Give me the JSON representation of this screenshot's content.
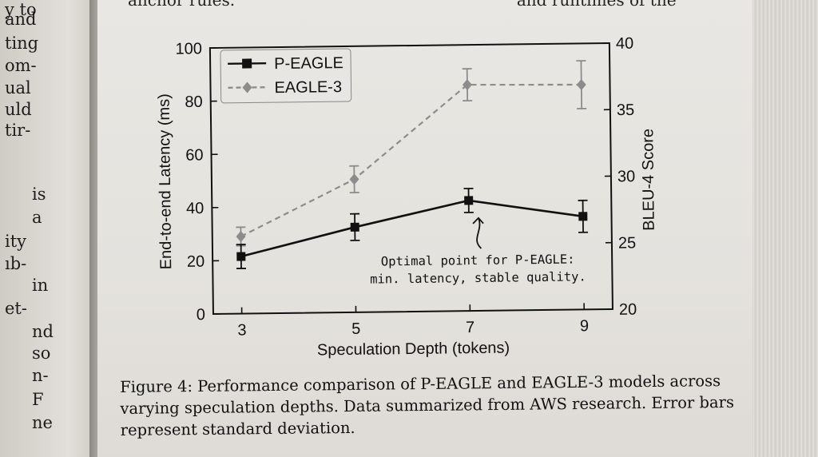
{
  "left_page_fragments": [
    "y to",
    "and",
    "ting",
    "om-",
    "ual",
    "uld",
    "tir-",
    "",
    "is",
    "a",
    "ity",
    "ıb-",
    "in",
    "et-",
    "nd",
    "so",
    "n-",
    "F",
    "ne"
  ],
  "top_fragment_left": "anchor rules.",
  "top_fragment_right": "and runtimes of the",
  "chart_data": {
    "type": "line",
    "x": [
      3,
      5,
      7,
      9
    ],
    "xlabel": "Speculation Depth (tokens)",
    "ylabel": "End-to-end Latency (ms)",
    "ylabel_right": "BLEU-4 Score",
    "ylim": [
      0,
      100
    ],
    "ylim_right": [
      20,
      40
    ],
    "xticks": [
      "3",
      "5",
      "7",
      "9"
    ],
    "yticks": [
      "0",
      "20",
      "40",
      "60",
      "80",
      "100"
    ],
    "yticks_right": [
      "20",
      "25",
      "30",
      "35",
      "40"
    ],
    "series": [
      {
        "name": "P-EAGLE",
        "values": [
          21.5,
          32,
          41.5,
          35
        ],
        "errors": [
          4.5,
          5,
          4.5,
          6
        ],
        "color": "#111111",
        "style": "solid",
        "marker": "square"
      },
      {
        "name": "EAGLE-3",
        "values": [
          29,
          50,
          85,
          84.5
        ],
        "errors": [
          3.5,
          5,
          6,
          9
        ],
        "color": "#8c8c8c",
        "style": "dashed",
        "marker": "diamond"
      }
    ],
    "annotation": {
      "lines": [
        "Optimal point for P-EAGLE:",
        "min. latency, stable quality."
      ],
      "target_x": 7,
      "target_y": 41.5
    },
    "legend": "top-left",
    "grid": false
  },
  "caption": {
    "lines": [
      "Figure 4: Performance comparison of P-EAGLE and EAGLE-3 models across",
      "varying speculation depths.  Data summarized from AWS research. Error bars",
      "represent standard deviation."
    ]
  }
}
